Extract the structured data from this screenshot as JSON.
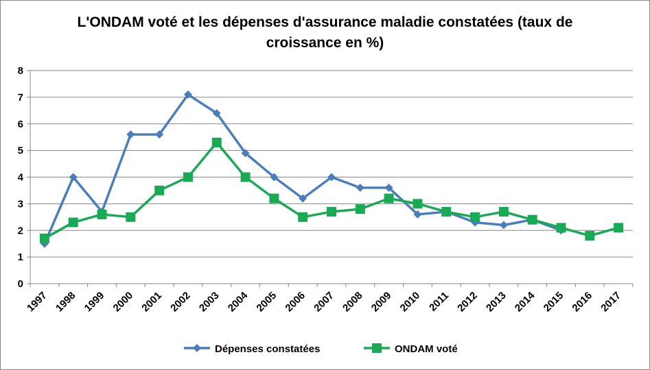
{
  "chart_data": {
    "type": "line",
    "title_line1": "L'ONDAM voté et les dépenses d'assurance maladie constatées (taux de",
    "title_line2": "croissance en %)",
    "xlabel": "",
    "ylabel": "",
    "ylim": [
      0,
      8
    ],
    "yticks": [
      "0",
      "1",
      "2",
      "3",
      "4",
      "5",
      "6",
      "7",
      "8"
    ],
    "grid": true,
    "legend_position": "bottom",
    "categories": [
      "1997",
      "1998",
      "1999",
      "2000",
      "2001",
      "2002",
      "2003",
      "2004",
      "2005",
      "2006",
      "2007",
      "2008",
      "2009",
      "2010",
      "2011",
      "2012",
      "2013",
      "2014",
      "2015",
      "2016",
      "2017"
    ],
    "series": [
      {
        "name": "Dépenses constatées",
        "color": "#4a7ebb",
        "marker": "diamond",
        "values": [
          1.5,
          4.0,
          2.7,
          5.6,
          5.6,
          7.1,
          6.4,
          4.9,
          4.0,
          3.2,
          4.0,
          3.6,
          3.6,
          2.6,
          2.7,
          2.3,
          2.2,
          2.4,
          2.0,
          null,
          null
        ]
      },
      {
        "name": "ONDAM voté",
        "color": "#1aaa55",
        "marker": "square",
        "values": [
          1.7,
          2.3,
          2.6,
          2.5,
          3.5,
          4.0,
          5.3,
          4.0,
          3.2,
          2.5,
          2.7,
          2.8,
          3.2,
          3.0,
          2.7,
          2.5,
          2.7,
          2.4,
          2.1,
          1.8,
          2.1
        ]
      }
    ]
  }
}
